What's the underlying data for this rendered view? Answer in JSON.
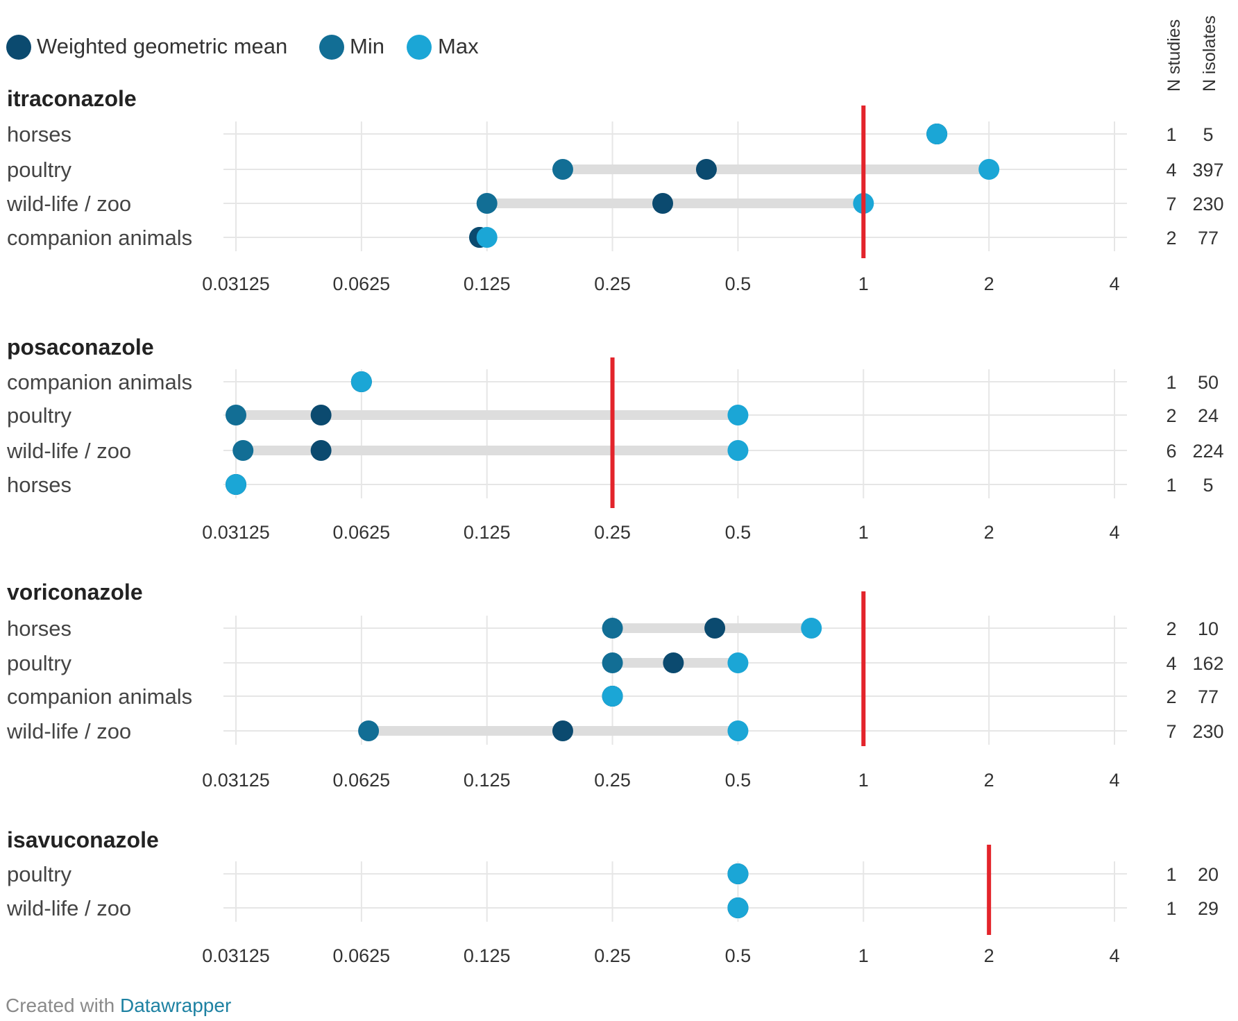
{
  "legend": [
    {
      "label": "Weighted geometric mean",
      "color": "#0b4a6f"
    },
    {
      "label": "Min",
      "color": "#126e95"
    },
    {
      "label": "Max",
      "color": "#1ba6d6"
    }
  ],
  "column_headers": {
    "studies": "N studies",
    "isolates": "N isolates"
  },
  "colors": {
    "cutoff": "#e3242b",
    "bar": "#dddddd",
    "grid": "#e6e6e6"
  },
  "footer": {
    "prefix": "Created with",
    "link": "Datawrapper"
  },
  "chart_data": [
    {
      "type": "range-dot",
      "title": "itraconazole",
      "tick_labels": [
        "0.03125",
        "0.0625",
        "0.125",
        "0.25",
        "0.5",
        "1",
        "2",
        "4"
      ],
      "xlim": [
        0.03125,
        4
      ],
      "cutoff": 1,
      "rows": [
        {
          "label": "horses",
          "min": 1.5,
          "mean": 1.5,
          "max": 1.5,
          "studies": "1",
          "isolates": "5"
        },
        {
          "label": "poultry",
          "min": 0.19,
          "mean": 0.42,
          "max": 2,
          "studies": "4",
          "isolates": "397"
        },
        {
          "label": "wild-life / zoo",
          "min": 0.125,
          "mean": 0.33,
          "max": 1,
          "studies": "7",
          "isolates": "230"
        },
        {
          "label": "companion animals",
          "min": 0.12,
          "mean": 0.12,
          "max": 0.125,
          "studies": "2",
          "isolates": "77"
        }
      ]
    },
    {
      "type": "range-dot",
      "title": "posaconazole",
      "tick_labels": [
        "0.03125",
        "0.0625",
        "0.125",
        "0.25",
        "0.5",
        "1",
        "2",
        "4"
      ],
      "xlim": [
        0.03125,
        4
      ],
      "cutoff": 0.25,
      "rows": [
        {
          "label": "companion animals",
          "min": 0.0625,
          "mean": 0.0625,
          "max": 0.0625,
          "studies": "1",
          "isolates": "50"
        },
        {
          "label": "poultry",
          "min": 0.03125,
          "mean": 0.05,
          "max": 0.5,
          "studies": "2",
          "isolates": "24"
        },
        {
          "label": "wild-life / zoo",
          "min": 0.0325,
          "mean": 0.05,
          "max": 0.5,
          "studies": "6",
          "isolates": "224"
        },
        {
          "label": "horses",
          "min": 0.03125,
          "mean": 0.03125,
          "max": 0.03125,
          "studies": "1",
          "isolates": "5"
        }
      ]
    },
    {
      "type": "range-dot",
      "title": "voriconazole",
      "tick_labels": [
        "0.03125",
        "0.0625",
        "0.125",
        "0.25",
        "0.5",
        "1",
        "2",
        "4"
      ],
      "xlim": [
        0.03125,
        4
      ],
      "cutoff": 1,
      "rows": [
        {
          "label": "horses",
          "min": 0.25,
          "mean": 0.44,
          "max": 0.75,
          "studies": "2",
          "isolates": "10"
        },
        {
          "label": "poultry",
          "min": 0.25,
          "mean": 0.35,
          "max": 0.5,
          "studies": "4",
          "isolates": "162"
        },
        {
          "label": "companion animals",
          "min": 0.25,
          "mean": 0.25,
          "max": 0.25,
          "studies": "2",
          "isolates": "77"
        },
        {
          "label": "wild-life / zoo",
          "min": 0.065,
          "mean": 0.19,
          "max": 0.5,
          "studies": "7",
          "isolates": "230"
        }
      ]
    },
    {
      "type": "range-dot",
      "title": "isavuconazole",
      "tick_labels": [
        "0.03125",
        "0.0625",
        "0.125",
        "0.25",
        "0.5",
        "1",
        "2",
        "4"
      ],
      "xlim": [
        0.03125,
        4
      ],
      "cutoff": 2,
      "rows": [
        {
          "label": "poultry",
          "min": 0.5,
          "mean": 0.5,
          "max": 0.5,
          "studies": "1",
          "isolates": "20"
        },
        {
          "label": "wild-life / zoo",
          "min": 0.5,
          "mean": 0.5,
          "max": 0.5,
          "studies": "1",
          "isolates": "29"
        }
      ]
    }
  ]
}
